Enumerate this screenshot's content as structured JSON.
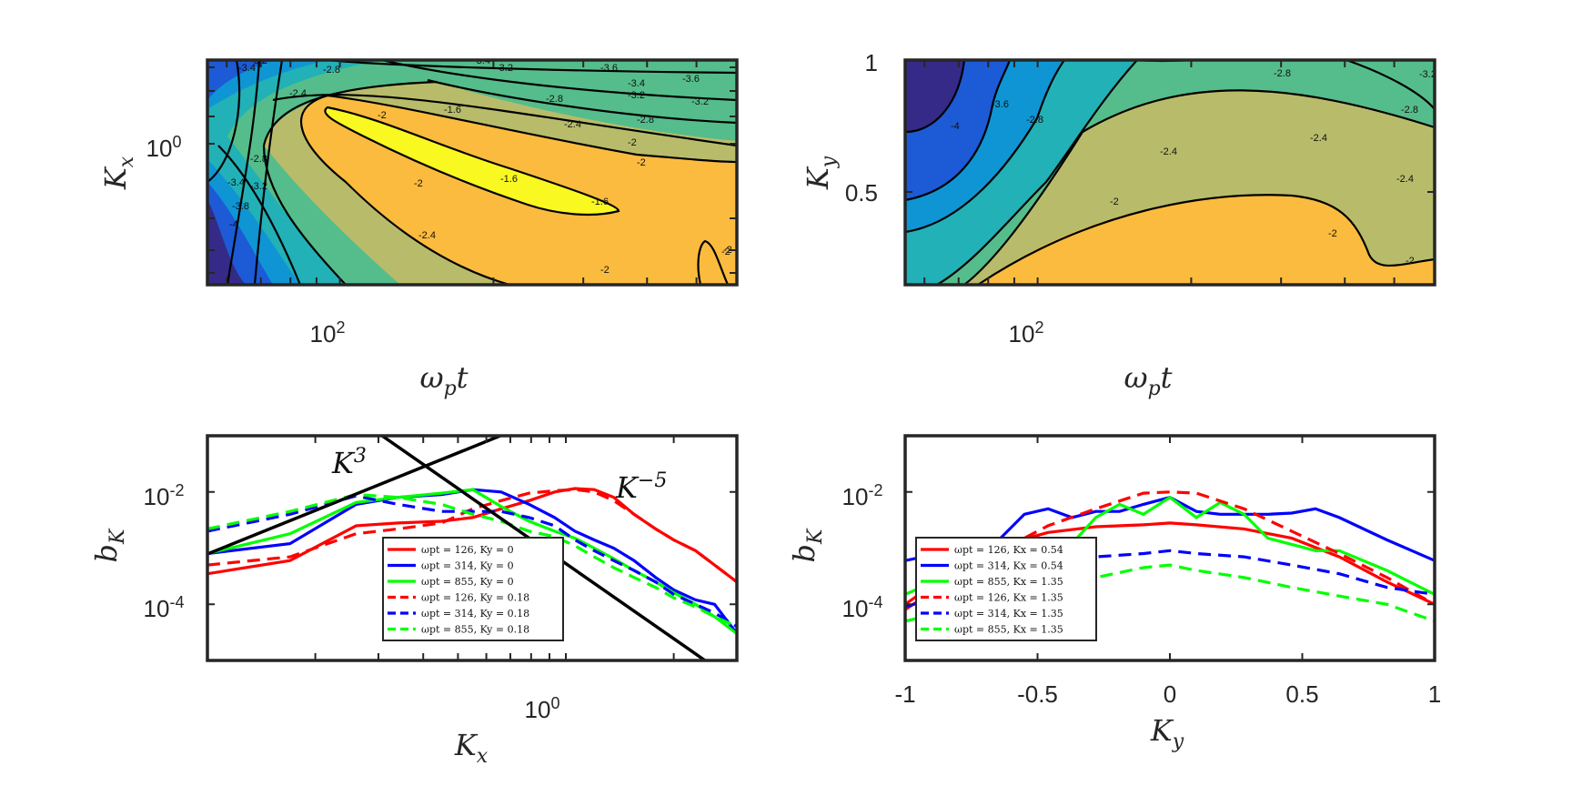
{
  "chart_data": [
    {
      "type": "contour",
      "panel": "top-left",
      "xlabel": "ωpt",
      "ylabel": "Kx",
      "x_scale": "log",
      "y_scale": "log",
      "xlim": [
        55,
        600
      ],
      "ylim": [
        0.1,
        3.0
      ],
      "xticks": [
        100
      ],
      "xtick_labels": [
        "10^2"
      ],
      "yticks": [
        1.0
      ],
      "ytick_labels": [
        "10^0"
      ],
      "colormap": [
        "#352a87",
        "#1c5ad6",
        "#0f95d3",
        "#21b1b6",
        "#55bd8b",
        "#b8bc6a",
        "#fbbb3e",
        "#f9f820"
      ],
      "levels": [
        -4,
        -3.8,
        -3.6,
        -3.4,
        -3.2,
        -2.8,
        -2.4,
        -2,
        -1.6
      ],
      "contour_labels": [
        "-3.4",
        "-3.4",
        "-3.2",
        "-2.8",
        "-2.4",
        "-3.4",
        "-3.2",
        "-3.6",
        "-3.4",
        "-3.6",
        "-3.2",
        "-3.2",
        "-2.8",
        "-2.8",
        "-2.4",
        "-2",
        "-2",
        "-1.6",
        "-2",
        "-1.6",
        "-1.6",
        "-2",
        "-2.4",
        "-2",
        "-2",
        "-3.4",
        "-3.2",
        "-2.8",
        "-3.8",
        "-4",
        "-2"
      ]
    },
    {
      "type": "contour",
      "panel": "top-right",
      "xlabel": "ωpt",
      "ylabel": "Ky",
      "x_scale": "log",
      "xlim": [
        55,
        600
      ],
      "ylim": [
        0.1,
        1.0
      ],
      "xticks": [
        100
      ],
      "xtick_labels": [
        "10^2"
      ],
      "yticks": [
        0.5,
        1.0
      ],
      "ytick_labels": [
        "0.5",
        "1"
      ],
      "levels": [
        -4,
        -3.6,
        -3.2,
        -2.8,
        -2.4,
        -2
      ],
      "contour_labels": [
        "-3.2",
        "-3.6",
        "-2.8",
        "-2.8",
        "-2.8",
        "-2.4",
        "-2.4",
        "-2",
        "-2.4",
        "-2",
        "-2",
        "-4"
      ]
    },
    {
      "type": "line",
      "panel": "bottom-left",
      "xlabel": "Kx",
      "ylabel": "bK",
      "x_scale": "log",
      "y_scale": "log",
      "xlim": [
        0.1,
        3.0
      ],
      "ylim": [
        1e-05,
        0.1
      ],
      "xticks": [
        1.0
      ],
      "xtick_labels": [
        "10^0"
      ],
      "yticks": [
        0.01,
        0.0001
      ],
      "ytick_labels": [
        "10^-2",
        "10^-4"
      ],
      "annotations": [
        "K^3",
        "K^-5"
      ],
      "series": [
        {
          "name": "ωpt = 126, Ky = 0",
          "color": "#ff0000",
          "dash": "solid",
          "x": [
            0.1,
            0.17,
            0.26,
            0.34,
            0.45,
            0.55,
            0.66,
            0.79,
            0.93,
            1.06,
            1.2,
            1.36,
            1.55,
            1.78,
            2.0,
            2.3,
            2.6,
            3.0
          ],
          "y": [
            0.00035,
            0.0006,
            0.0025,
            0.0028,
            0.003,
            0.0035,
            0.005,
            0.007,
            0.01,
            0.0115,
            0.011,
            0.008,
            0.004,
            0.0022,
            0.0014,
            0.0009,
            0.0005,
            0.00025
          ]
        },
        {
          "name": "ωpt = 314, Ky = 0",
          "color": "#0000ff",
          "dash": "solid",
          "x": [
            0.1,
            0.17,
            0.26,
            0.34,
            0.45,
            0.55,
            0.66,
            0.79,
            0.93,
            1.06,
            1.2,
            1.36,
            1.55,
            1.78,
            2.0,
            2.3,
            2.6,
            3.0
          ],
          "y": [
            0.0008,
            0.0012,
            0.006,
            0.008,
            0.009,
            0.011,
            0.01,
            0.006,
            0.0035,
            0.002,
            0.0014,
            0.001,
            0.0006,
            0.0003,
            0.00018,
            0.00012,
            0.0001,
            3e-05
          ]
        },
        {
          "name": "ωpt = 855, Ky = 0",
          "color": "#00ff00",
          "dash": "solid",
          "x": [
            0.1,
            0.17,
            0.26,
            0.34,
            0.45,
            0.55,
            0.66,
            0.79,
            0.93,
            1.06,
            1.2,
            1.36,
            1.55,
            1.78,
            2.0,
            2.3,
            2.6,
            3.0
          ],
          "y": [
            0.0008,
            0.0018,
            0.0065,
            0.008,
            0.0095,
            0.011,
            0.0055,
            0.003,
            0.002,
            0.0015,
            0.001,
            0.00065,
            0.0004,
            0.00025,
            0.00016,
            0.0001,
            6e-05,
            3e-05
          ]
        },
        {
          "name": "ωpt = 126, Ky = 0.18",
          "color": "#ff0000",
          "dash": "dashed",
          "x": [
            0.1,
            0.17,
            0.26,
            0.34,
            0.45,
            0.55,
            0.66,
            0.79,
            0.93,
            1.06,
            1.2,
            1.36,
            1.55,
            1.78,
            2.0,
            2.3,
            2.6,
            3.0
          ],
          "y": [
            0.0005,
            0.0007,
            0.0018,
            0.0022,
            0.0028,
            0.005,
            0.007,
            0.0095,
            0.0105,
            0.011,
            0.01,
            0.007,
            0.004,
            0.0022,
            0.0014,
            0.0009,
            0.0005,
            0.00025
          ]
        },
        {
          "name": "ωpt = 314, Ky = 0.18",
          "color": "#0000ff",
          "dash": "dashed",
          "x": [
            0.1,
            0.17,
            0.26,
            0.34,
            0.45,
            0.55,
            0.66,
            0.79,
            0.93,
            1.06,
            1.2,
            1.36,
            1.55,
            1.78,
            2.0,
            2.3,
            2.6,
            3.0
          ],
          "y": [
            0.002,
            0.004,
            0.0085,
            0.006,
            0.0045,
            0.0045,
            0.0045,
            0.0035,
            0.0025,
            0.0014,
            0.0009,
            0.0006,
            0.0004,
            0.00025,
            0.00015,
            0.0001,
            7e-05,
            4e-05
          ]
        },
        {
          "name": "ωpt = 855, Ky = 0.18",
          "color": "#00ff00",
          "dash": "dashed",
          "x": [
            0.1,
            0.17,
            0.26,
            0.34,
            0.45,
            0.55,
            0.66,
            0.79,
            0.93,
            1.06,
            1.2,
            1.36,
            1.55,
            1.78,
            2.0,
            2.3,
            2.6,
            3.0
          ],
          "y": [
            0.0022,
            0.0045,
            0.009,
            0.008,
            0.006,
            0.004,
            0.003,
            0.002,
            0.0016,
            0.0011,
            0.0007,
            0.00045,
            0.0003,
            0.0002,
            0.00013,
            9e-05,
            6e-05,
            4e-05
          ]
        }
      ]
    },
    {
      "type": "line",
      "panel": "bottom-right",
      "xlabel": "Ky",
      "ylabel": "bK",
      "y_scale": "log",
      "xlim": [
        -1,
        1
      ],
      "ylim": [
        1e-05,
        0.1
      ],
      "xticks": [
        -1,
        -0.5,
        0,
        0.5,
        1
      ],
      "xtick_labels": [
        "-1",
        "-0.5",
        "0",
        "0.5",
        "1"
      ],
      "yticks": [
        0.01,
        0.0001
      ],
      "ytick_labels": [
        "10^-2",
        "10^-4"
      ],
      "series": [
        {
          "name": "ωpt = 126, Kx = 0.54",
          "color": "#ff0000",
          "dash": "solid",
          "x": [
            -1,
            -0.82,
            -0.64,
            -0.46,
            -0.28,
            -0.1,
            0,
            0.1,
            0.28,
            0.46,
            0.64,
            0.82,
            1
          ],
          "y": [
            0.0001,
            0.0004,
            0.0011,
            0.0019,
            0.0024,
            0.0026,
            0.0028,
            0.0026,
            0.0022,
            0.0015,
            0.0007,
            0.00025,
            0.0001
          ]
        },
        {
          "name": "ωpt = 314, Kx = 0.54",
          "color": "#0000ff",
          "dash": "solid",
          "x": [
            -1,
            -0.82,
            -0.64,
            -0.55,
            -0.46,
            -0.37,
            -0.28,
            -0.19,
            -0.1,
            0,
            0.1,
            0.19,
            0.28,
            0.37,
            0.46,
            0.55,
            0.64,
            0.82,
            1
          ],
          "y": [
            0.0006,
            0.0009,
            0.0015,
            0.004,
            0.005,
            0.0035,
            0.0045,
            0.0045,
            0.006,
            0.008,
            0.0045,
            0.004,
            0.004,
            0.004,
            0.0042,
            0.005,
            0.0035,
            0.0014,
            0.0006
          ]
        },
        {
          "name": "ωpt = 855, Kx = 1.35",
          "color": "#00ff00",
          "dash": "solid",
          "x": [
            -1,
            -0.82,
            -0.64,
            -0.46,
            -0.37,
            -0.28,
            -0.19,
            -0.1,
            0,
            0.1,
            0.19,
            0.28,
            0.37,
            0.55,
            0.64,
            0.82,
            1
          ],
          "y": [
            0.00015,
            0.00035,
            0.00045,
            0.0009,
            0.0012,
            0.0035,
            0.006,
            0.004,
            0.008,
            0.0035,
            0.0065,
            0.004,
            0.0015,
            0.0009,
            0.0009,
            0.0004,
            0.00015
          ]
        },
        {
          "name": "ωpt = 126, Kx = 1.35",
          "color": "#ff0000",
          "dash": "dashed",
          "x": [
            -1,
            -0.82,
            -0.64,
            -0.46,
            -0.28,
            -0.1,
            0,
            0.1,
            0.28,
            0.46,
            0.64,
            0.82,
            1
          ],
          "y": [
            8e-05,
            0.0003,
            0.0009,
            0.0025,
            0.005,
            0.0095,
            0.01,
            0.0095,
            0.005,
            0.002,
            0.0008,
            0.0003,
            0.0001
          ]
        },
        {
          "name": "ωpt = 314, Kx = 1.35",
          "color": "#0000ff",
          "dash": "dashed",
          "x": [
            -1,
            -0.82,
            -0.64,
            -0.46,
            -0.28,
            -0.1,
            0,
            0.1,
            0.28,
            0.46,
            0.64,
            0.82,
            1
          ],
          "y": [
            9e-05,
            0.00016,
            0.0003,
            0.0005,
            0.0007,
            0.0008,
            0.0009,
            0.0008,
            0.0007,
            0.0005,
            0.00035,
            0.0002,
            0.00015
          ]
        },
        {
          "name": "ωpt = 855, Kx = 1.35",
          "color": "#00ff00",
          "dash": "dashed",
          "x": [
            -1,
            -0.82,
            -0.64,
            -0.46,
            -0.28,
            -0.1,
            0,
            0.1,
            0.28,
            0.46,
            0.64,
            0.82,
            1
          ],
          "y": [
            5e-05,
            8e-05,
            0.00013,
            0.0002,
            0.0003,
            0.00045,
            0.0005,
            0.0004,
            0.0003,
            0.0002,
            0.00014,
            0.0001,
            5e-05
          ]
        }
      ]
    }
  ]
}
